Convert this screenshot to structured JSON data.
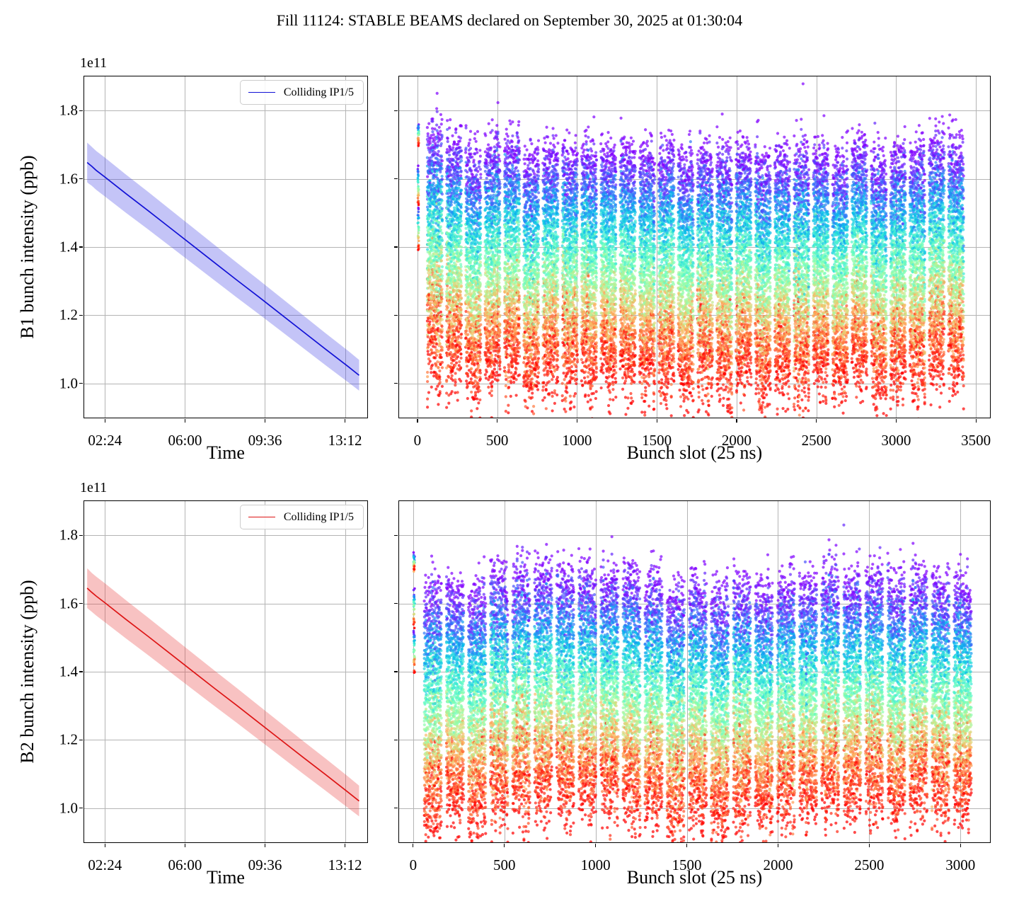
{
  "title": "Fill 11124: STABLE BEAMS declared on September 30, 2025 at 01:30:04",
  "figure": {
    "background": "#ffffff",
    "grid_color": "#b4b4b4",
    "spine_color": "#000000"
  },
  "chart_data": [
    {
      "id": "b1-vs-time",
      "type": "area",
      "title": "",
      "xlabel": "Time",
      "ylabel": "B1 bunch intensity (ppb)",
      "offset_text": "1e11",
      "legend_label": "Colliding IP1/5",
      "legend_position": "upper right",
      "grid": true,
      "show_y_labels": true,
      "line_color": "#1111d6",
      "band_color_rgba": "rgba(70,70,230,0.32)",
      "x_ticks": {
        "labels": [
          "02:24",
          "06:00",
          "09:36",
          "13:12"
        ],
        "minutes": [
          144,
          360,
          576,
          792
        ]
      },
      "xlim_minutes": [
        88,
        852
      ],
      "y_ticks": [
        1.0,
        1.2,
        1.4,
        1.6,
        1.8
      ],
      "ylim": [
        0.9,
        1.9
      ],
      "x_minutes": [
        96,
        100,
        108,
        120,
        144,
        200,
        260,
        320,
        380,
        440,
        500,
        560,
        620,
        680,
        740,
        800,
        830
      ],
      "mean_1e11": [
        1.648,
        1.644,
        1.637,
        1.625,
        1.605,
        1.557,
        1.507,
        1.456,
        1.405,
        1.354,
        1.303,
        1.253,
        1.202,
        1.151,
        1.1,
        1.05,
        1.024
      ],
      "band_half_1e11": [
        0.058,
        0.058,
        0.057,
        0.057,
        0.057,
        0.056,
        0.055,
        0.054,
        0.053,
        0.052,
        0.051,
        0.05,
        0.049,
        0.048,
        0.047,
        0.046,
        0.045
      ]
    },
    {
      "id": "b1-vs-bunch-slot",
      "type": "scatter",
      "xlabel": "Bunch slot (25 ns)",
      "grid": true,
      "show_y_labels": false,
      "colormap": "rainbow: color encodes time into fill (purple = fill start, red = fill end)",
      "x_ticks": [
        0,
        500,
        1000,
        1500,
        2000,
        2500,
        3000,
        3500
      ],
      "xlim": [
        -115,
        3588
      ],
      "y_ticks": [
        1.0,
        1.2,
        1.4,
        1.6,
        1.8
      ],
      "ylim": [
        0.9,
        1.9
      ],
      "trains": {
        "count": 28,
        "first_slot": 60,
        "spacing": 121,
        "bunches_per_train": 96,
        "draw_step": 2
      },
      "intensity_start_1e11": {
        "mean": 1.655,
        "sigma": 0.042
      },
      "intensity_drop_1e11": {
        "mean": 0.615,
        "sigma": 0.05
      },
      "time_samples": 20,
      "noise_sigma": 0.016,
      "outlier_prob": 0.012,
      "pilot_slot_segments": [
        [
          1.755,
          1.7
        ],
        [
          1.63,
          1.52
        ],
        [
          1.515,
          1.385
        ]
      ],
      "dot_radius": 2.1,
      "dot_alpha": 0.7,
      "seed": 7
    },
    {
      "id": "b2-vs-time",
      "type": "area",
      "title": "",
      "xlabel": "Time",
      "ylabel": "B2 bunch intensity (ppb)",
      "offset_text": "1e11",
      "legend_label": "Colliding IP1/5",
      "legend_position": "upper right",
      "grid": true,
      "show_y_labels": true,
      "line_color": "#dd1414",
      "band_color_rgba": "rgba(235,70,70,0.33)",
      "x_ticks": {
        "labels": [
          "02:24",
          "06:00",
          "09:36",
          "13:12"
        ],
        "minutes": [
          144,
          360,
          576,
          792
        ]
      },
      "xlim_minutes": [
        88,
        852
      ],
      "y_ticks": [
        1.0,
        1.2,
        1.4,
        1.6,
        1.8
      ],
      "ylim": [
        0.9,
        1.9
      ],
      "x_minutes": [
        96,
        100,
        108,
        120,
        144,
        200,
        260,
        320,
        380,
        440,
        500,
        560,
        620,
        680,
        740,
        800,
        830
      ],
      "mean_1e11": [
        1.645,
        1.641,
        1.633,
        1.622,
        1.602,
        1.554,
        1.504,
        1.453,
        1.402,
        1.351,
        1.301,
        1.25,
        1.199,
        1.148,
        1.098,
        1.047,
        1.021
      ],
      "band_half_1e11": [
        0.058,
        0.058,
        0.057,
        0.057,
        0.057,
        0.056,
        0.055,
        0.054,
        0.053,
        0.052,
        0.051,
        0.05,
        0.049,
        0.048,
        0.047,
        0.046,
        0.045
      ]
    },
    {
      "id": "b2-vs-bunch-slot",
      "type": "scatter",
      "xlabel": "Bunch slot (25 ns)",
      "grid": true,
      "show_y_labels": false,
      "colormap": "rainbow: color encodes time into fill (purple = fill start, red = fill end)",
      "x_ticks": [
        0,
        500,
        1000,
        1500,
        2000,
        2500,
        3000
      ],
      "xlim": [
        -77,
        3162
      ],
      "y_ticks": [
        1.0,
        1.2,
        1.4,
        1.6,
        1.8
      ],
      "ylim": [
        0.9,
        1.9
      ],
      "trains": {
        "count": 25,
        "first_slot": 60,
        "spacing": 121,
        "bunches_per_train": 96,
        "draw_step": 2
      },
      "intensity_start_1e11": {
        "mean": 1.65,
        "sigma": 0.042
      },
      "intensity_drop_1e11": {
        "mean": 0.615,
        "sigma": 0.05
      },
      "time_samples": 20,
      "noise_sigma": 0.016,
      "outlier_prob": 0.012,
      "pilot_slot_segments": [
        [
          1.745,
          1.695
        ],
        [
          1.64,
          1.53
        ],
        [
          1.52,
          1.4
        ]
      ],
      "dot_radius": 2.1,
      "dot_alpha": 0.7,
      "seed": 11
    }
  ]
}
